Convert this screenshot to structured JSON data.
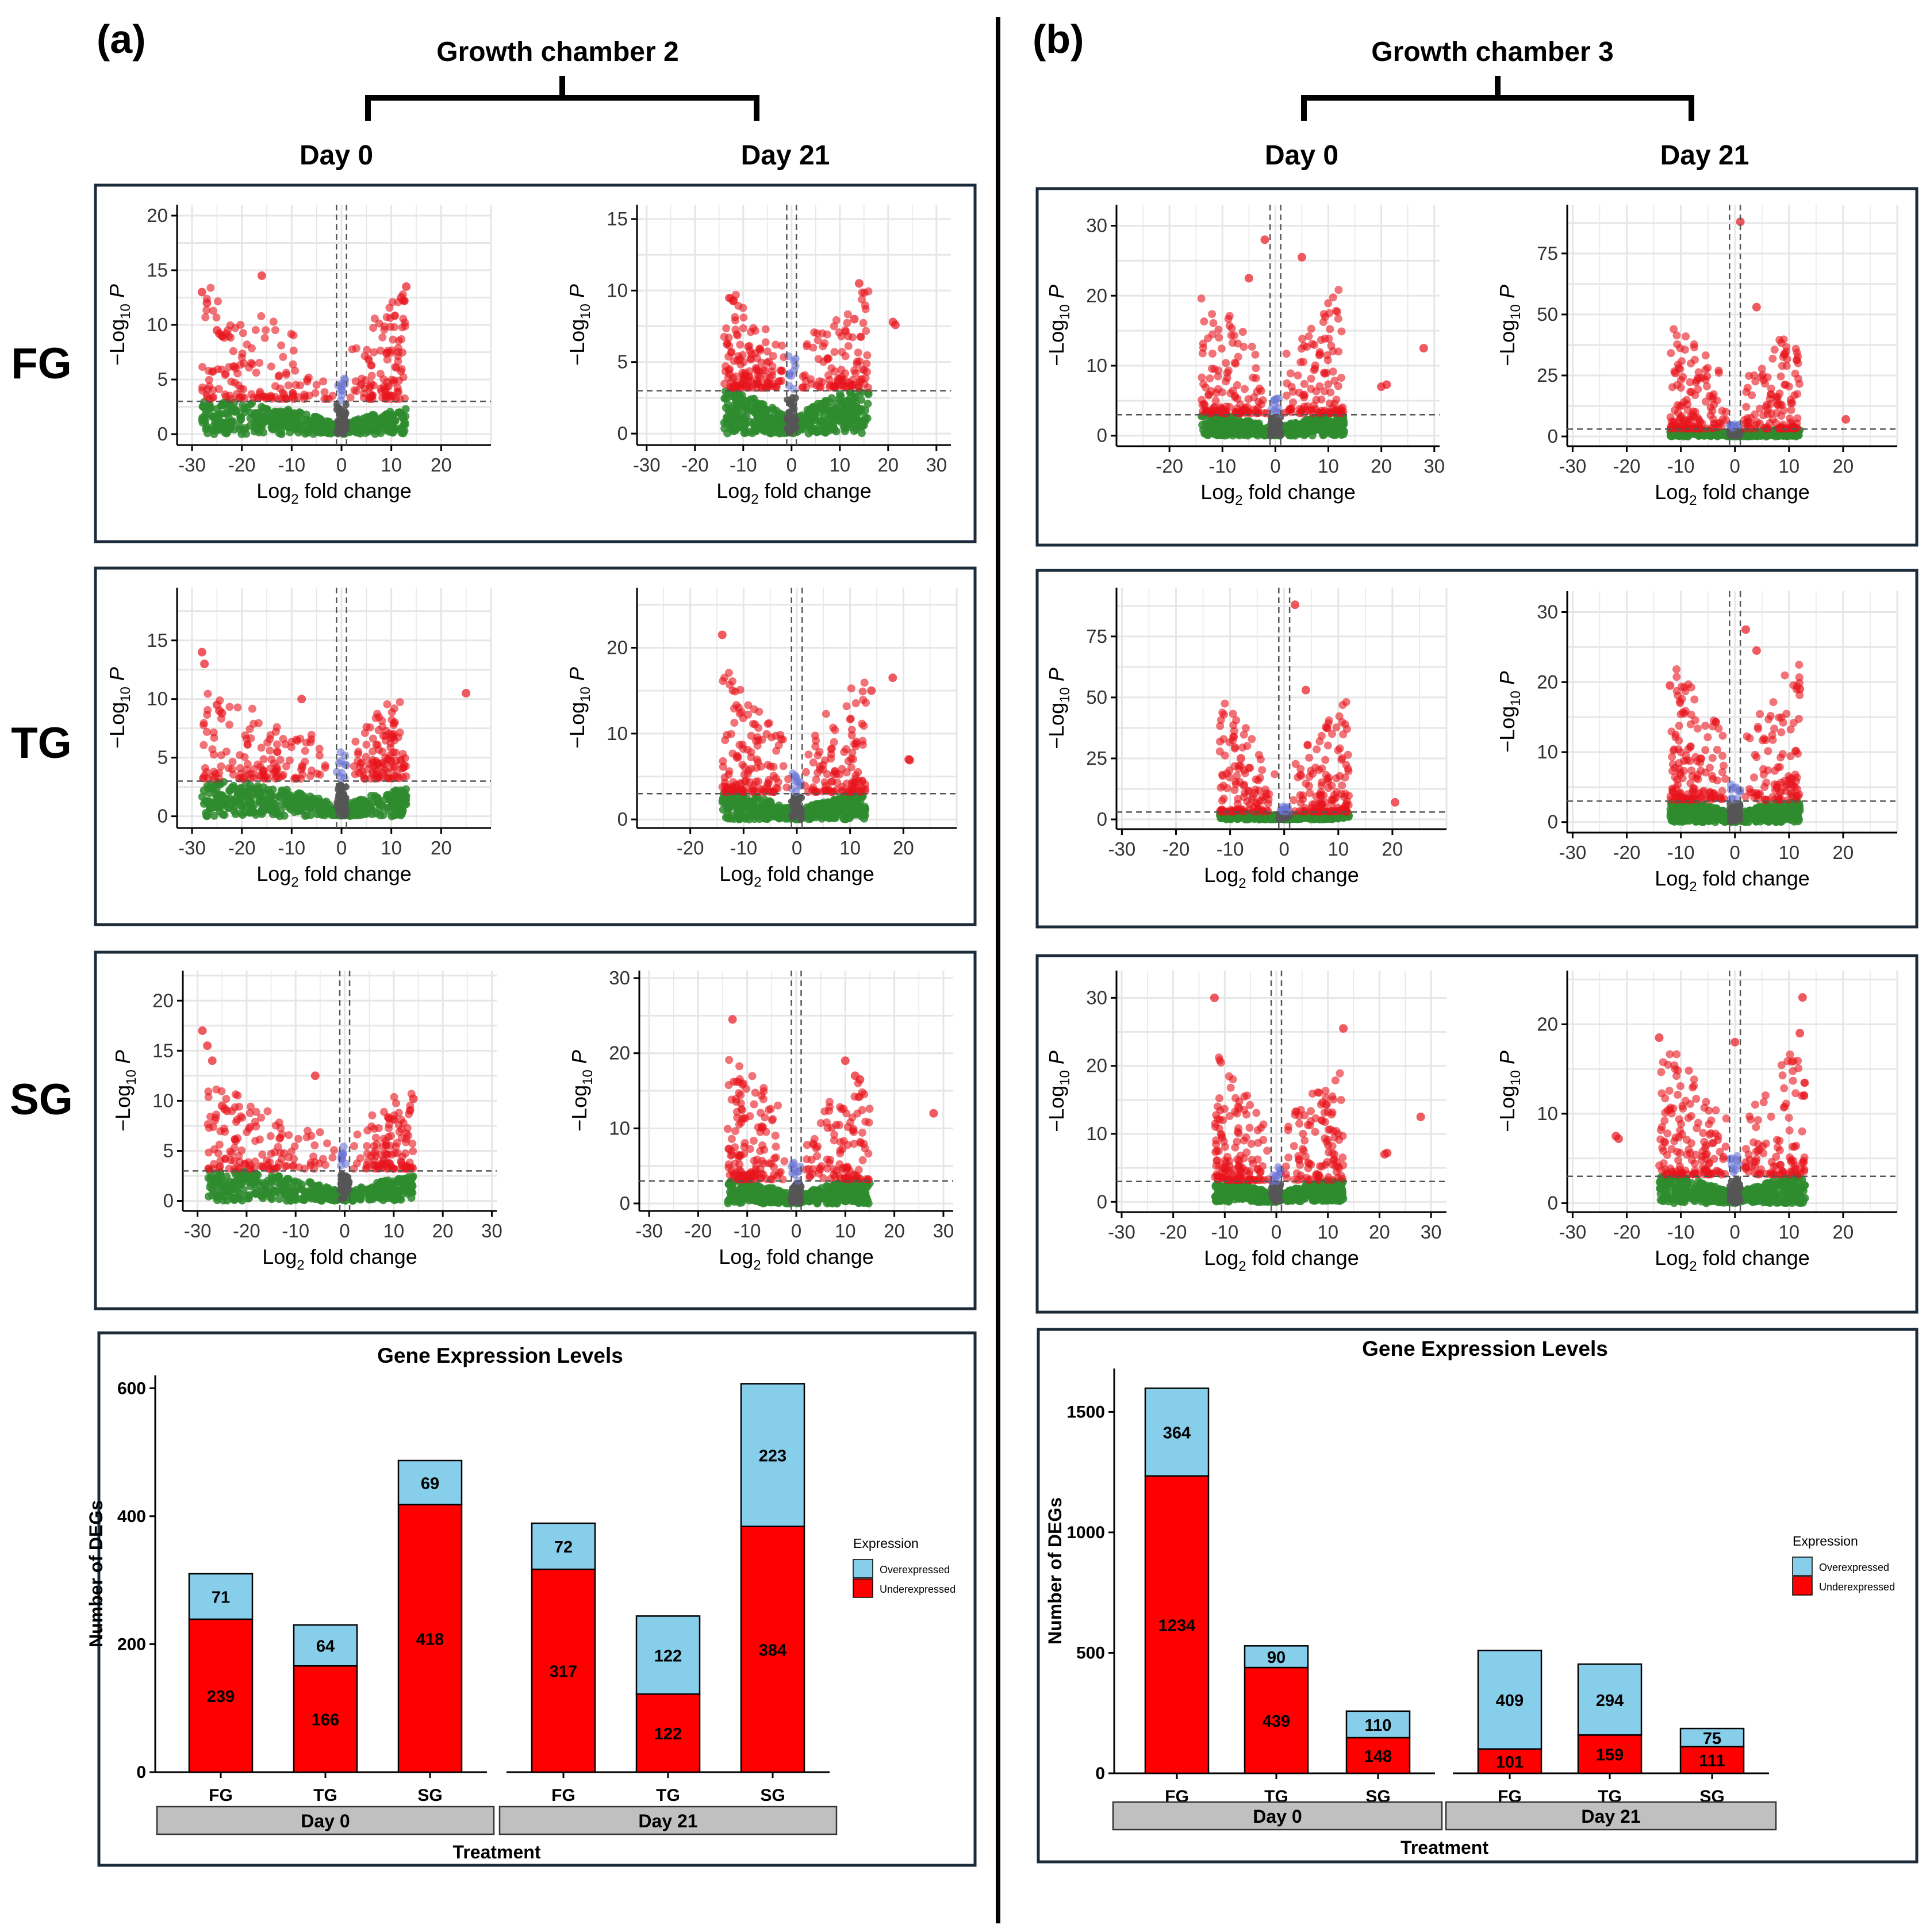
{
  "figure": {
    "panel_a": {
      "letter": "(a)",
      "chamber": "Growth chamber 2",
      "day0": "Day 0",
      "day21": "Day 21"
    },
    "panel_b": {
      "letter": "(b)",
      "chamber": "Growth chamber 3",
      "day0": "Day 0",
      "day21": "Day 21"
    },
    "row_labels": [
      "FG",
      "TG",
      "SG"
    ]
  },
  "volcano_common": {
    "xlabel_main": "Log",
    "xlabel_sub": "2",
    "xlabel_rest": " fold change",
    "ylabel_main": "−Log",
    "ylabel_sub": "10",
    "ylabel_rest": " P"
  },
  "colors": {
    "sig": "#e8141c",
    "ns": "#2e8b2e",
    "logfc": "#555555",
    "pval": "#6a75d6",
    "over": "#87ceeb",
    "under": "#ff0000",
    "strip": "#c0c0c0",
    "frame": "#1b2b3a"
  },
  "chart_data": [
    {
      "id": "a-FG-d0",
      "type": "scatter",
      "xlim": [
        -33,
        30
      ],
      "xticks": [
        -30,
        -20,
        -10,
        0,
        10,
        20
      ],
      "ylim": [
        -1,
        21
      ],
      "yticks": [
        0,
        5,
        10,
        15,
        20
      ],
      "ymax_data": 14,
      "pval_cut": 3,
      "fc_cut": 1,
      "left_spread": -28,
      "right_spread": 13,
      "extra": [
        [
          -28,
          13
        ],
        [
          -27,
          12
        ],
        [
          -25,
          9.5
        ],
        [
          -24.5,
          9.2
        ],
        [
          -24,
          9
        ],
        [
          -16,
          14.5
        ],
        [
          13,
          13.5
        ],
        [
          12,
          12.5
        ]
      ],
      "title": "Volcano plot FG Day 0 (Growth chamber 2)"
    },
    {
      "id": "a-FG-d21",
      "type": "scatter",
      "xlim": [
        -32,
        33
      ],
      "xticks": [
        -30,
        -20,
        -10,
        0,
        10,
        20,
        30
      ],
      "ylim": [
        -0.8,
        16
      ],
      "yticks": [
        0,
        5,
        10,
        15
      ],
      "ymax_data": 10.5,
      "pval_cut": 3,
      "fc_cut": 1,
      "left_spread": -14,
      "right_spread": 16,
      "extra": [
        [
          21,
          7.8
        ],
        [
          21.5,
          7.6
        ],
        [
          14,
          10.5
        ],
        [
          13,
          8
        ],
        [
          -12,
          9.3
        ]
      ],
      "title": "Volcano plot FG Day 21 (Growth chamber 2)"
    },
    {
      "id": "a-TG-d0",
      "type": "scatter",
      "xlim": [
        -33,
        30
      ],
      "xticks": [
        -30,
        -20,
        -10,
        0,
        10,
        20
      ],
      "ylim": [
        -1,
        19.5
      ],
      "yticks": [
        0,
        5,
        10,
        15
      ],
      "ymax_data": 11,
      "pval_cut": 3,
      "fc_cut": 1,
      "left_spread": -28,
      "right_spread": 13,
      "extra": [
        [
          -28,
          14
        ],
        [
          -27.5,
          13
        ],
        [
          -25,
          9.5
        ],
        [
          -24.5,
          9
        ],
        [
          -24,
          8.8
        ],
        [
          25,
          10.5
        ],
        [
          -8,
          10
        ]
      ],
      "title": "Volcano plot TG Day 0 (Growth chamber 2)"
    },
    {
      "id": "a-TG-d21",
      "type": "scatter",
      "xlim": [
        -30,
        30
      ],
      "xticks": [
        -20,
        -10,
        0,
        10,
        20
      ],
      "ylim": [
        -1,
        27
      ],
      "yticks": [
        0,
        10,
        20
      ],
      "ymax_data": 18,
      "pval_cut": 3,
      "fc_cut": 1,
      "left_spread": -14,
      "right_spread": 13,
      "extra": [
        [
          -14,
          21.5
        ],
        [
          18,
          16.5
        ],
        [
          14,
          15
        ],
        [
          21,
          7
        ],
        [
          21.2,
          6.9
        ]
      ],
      "title": "Volcano plot TG Day 21 (Growth chamber 2)"
    },
    {
      "id": "a-SG-d0",
      "type": "scatter",
      "xlim": [
        -33,
        31
      ],
      "xticks": [
        -30,
        -20,
        -10,
        0,
        10,
        20,
        30
      ],
      "ylim": [
        -1,
        23
      ],
      "yticks": [
        0,
        5,
        10,
        15,
        20
      ],
      "ymax_data": 12,
      "pval_cut": 3,
      "fc_cut": 1,
      "left_spread": -28,
      "right_spread": 14,
      "extra": [
        [
          -29,
          17
        ],
        [
          -28,
          15.5
        ],
        [
          -27,
          14
        ],
        [
          -25,
          9.5
        ],
        [
          -24.5,
          9.2
        ],
        [
          -24,
          9
        ],
        [
          -6,
          12.5
        ],
        [
          14,
          10.2
        ]
      ],
      "title": "Volcano plot SG Day 0 (Growth chamber 2)"
    },
    {
      "id": "a-SG-d21",
      "type": "scatter",
      "xlim": [
        -32,
        32
      ],
      "xticks": [
        -30,
        -20,
        -10,
        0,
        10,
        20,
        30
      ],
      "ylim": [
        -1,
        31
      ],
      "yticks": [
        0,
        10,
        20,
        30
      ],
      "ymax_data": 22,
      "pval_cut": 3,
      "fc_cut": 1,
      "left_spread": -14,
      "right_spread": 15,
      "extra": [
        [
          -13,
          24.5
        ],
        [
          10,
          19
        ],
        [
          12,
          17
        ],
        [
          28,
          12
        ],
        [
          13,
          16.5
        ]
      ],
      "title": "Volcano plot SG Day 21 (Growth chamber 2)"
    },
    {
      "id": "b-FG-d0",
      "type": "scatter",
      "xlim": [
        -30,
        31
      ],
      "xticks": [
        -20,
        -10,
        0,
        10,
        20,
        30
      ],
      "ylim": [
        -1.5,
        33
      ],
      "yticks": [
        0,
        10,
        20,
        30
      ],
      "ymax_data": 22,
      "pval_cut": 3,
      "fc_cut": 1,
      "left_spread": -14,
      "right_spread": 13,
      "extra": [
        [
          -2,
          28
        ],
        [
          5,
          25.5
        ],
        [
          -5,
          22.5
        ],
        [
          20,
          7
        ],
        [
          21,
          7.3
        ],
        [
          28,
          12.5
        ]
      ],
      "title": "Volcano plot FG Day 0 (Growth chamber 3)"
    },
    {
      "id": "b-FG-d21",
      "type": "scatter",
      "xlim": [
        -31,
        30
      ],
      "xticks": [
        -30,
        -20,
        -10,
        0,
        10,
        20
      ],
      "ylim": [
        -4,
        95
      ],
      "yticks": [
        0,
        25,
        50,
        75
      ],
      "ymax_data": 50,
      "pval_cut": 3,
      "fc_cut": 1,
      "left_spread": -12,
      "right_spread": 12,
      "extra": [
        [
          1,
          88
        ],
        [
          4,
          53
        ],
        [
          20.5,
          7
        ],
        [
          -11,
          26
        ]
      ],
      "title": "Volcano plot FG Day 21 (Growth chamber 3)"
    },
    {
      "id": "b-TG-d0",
      "type": "scatter",
      "xlim": [
        -31,
        30
      ],
      "xticks": [
        -30,
        -20,
        -10,
        0,
        10,
        20
      ],
      "ylim": [
        -4,
        95
      ],
      "yticks": [
        0,
        25,
        50,
        75
      ],
      "ymax_data": 50,
      "pval_cut": 3,
      "fc_cut": 1,
      "left_spread": -12,
      "right_spread": 12,
      "extra": [
        [
          2,
          88
        ],
        [
          4,
          53
        ],
        [
          20.5,
          7
        ],
        [
          -8,
          25
        ]
      ],
      "title": "Volcano plot TG Day 0 (Growth chamber 3)"
    },
    {
      "id": "b-TG-d21",
      "type": "scatter",
      "xlim": [
        -31,
        30
      ],
      "xticks": [
        -30,
        -20,
        -10,
        0,
        10,
        20
      ],
      "ylim": [
        -1.5,
        33
      ],
      "yticks": [
        0,
        10,
        20,
        30
      ],
      "ymax_data": 24,
      "pval_cut": 3,
      "fc_cut": 1,
      "left_spread": -12,
      "right_spread": 12,
      "extra": [
        [
          2,
          27.5
        ],
        [
          4,
          24.5
        ],
        [
          12,
          19
        ],
        [
          -12,
          19.5
        ]
      ],
      "title": "Volcano plot TG Day 21 (Growth chamber 3)"
    },
    {
      "id": "b-SG-d0",
      "type": "scatter",
      "xlim": [
        -31,
        33
      ],
      "xticks": [
        -30,
        -20,
        -10,
        0,
        10,
        20,
        30
      ],
      "ylim": [
        -1.5,
        34
      ],
      "yticks": [
        0,
        10,
        20,
        30
      ],
      "ymax_data": 22,
      "pval_cut": 3,
      "fc_cut": 1,
      "left_spread": -12,
      "right_spread": 13,
      "extra": [
        [
          -12,
          30
        ],
        [
          13,
          25.5
        ],
        [
          21,
          7
        ],
        [
          21.5,
          7.2
        ],
        [
          28,
          12.5
        ]
      ],
      "title": "Volcano plot SG Day 0 (Growth chamber 3)"
    },
    {
      "id": "b-SG-d21",
      "type": "scatter",
      "xlim": [
        -31,
        30
      ],
      "xticks": [
        -30,
        -20,
        -10,
        0,
        10,
        20
      ],
      "ylim": [
        -1,
        26
      ],
      "yticks": [
        0,
        10,
        20
      ],
      "ymax_data": 19,
      "pval_cut": 3,
      "fc_cut": 1,
      "left_spread": -14,
      "right_spread": 13,
      "extra": [
        [
          -22,
          7.5
        ],
        [
          -21.5,
          7.2
        ],
        [
          12.5,
          23
        ],
        [
          -14,
          18.5
        ],
        [
          0,
          18
        ],
        [
          12,
          19
        ]
      ],
      "title": "Volcano plot SG Day 21 (Growth chamber 3)"
    },
    {
      "id": "a-bar",
      "type": "bar",
      "title": "Gene Expression Levels",
      "xlabel": "Treatment",
      "ylabel": "Number of DEGs",
      "ylim": [
        0,
        620
      ],
      "yticks": [
        0,
        200,
        400,
        600
      ],
      "groups": [
        "Day 0",
        "Day 21"
      ],
      "categories": [
        "FG",
        "TG",
        "SG",
        "FG",
        "TG",
        "SG"
      ],
      "series": [
        {
          "name": "Underexpressed",
          "values": [
            239,
            166,
            418,
            317,
            122,
            384
          ]
        },
        {
          "name": "Overexpressed",
          "values": [
            71,
            64,
            69,
            72,
            122,
            223
          ]
        }
      ],
      "legend_title": "Expression"
    },
    {
      "id": "b-bar",
      "type": "bar",
      "title": "Gene Expression Levels",
      "xlabel": "Treatment",
      "ylabel": "Number of DEGs",
      "ylim": [
        0,
        1680
      ],
      "yticks": [
        0,
        500,
        1000,
        1500
      ],
      "groups": [
        "Day 0",
        "Day 21"
      ],
      "categories": [
        "FG",
        "TG",
        "SG",
        "FG",
        "TG",
        "SG"
      ],
      "series": [
        {
          "name": "Underexpressed",
          "values": [
            1234,
            439,
            148,
            101,
            159,
            111
          ]
        },
        {
          "name": "Overexpressed",
          "values": [
            364,
            90,
            110,
            409,
            294,
            75
          ]
        }
      ],
      "legend_title": "Expression"
    }
  ]
}
